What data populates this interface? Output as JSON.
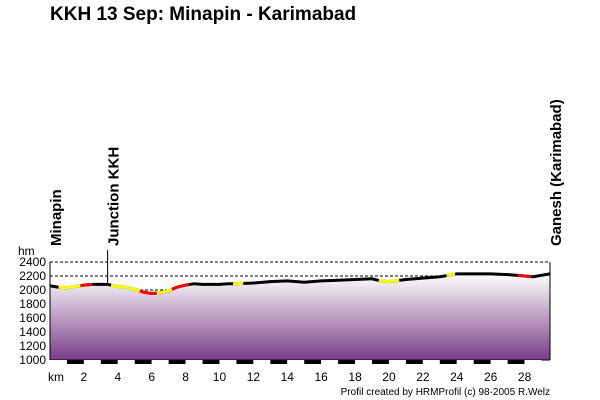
{
  "title": "KKH 13 Sep: Minapin - Karimabad",
  "credit": "Profil created by HRMProfil (c) 98-2005 R.Welz",
  "chart_data": {
    "type": "area",
    "title": "KKH 13 Sep: Minapin - Karimabad",
    "xlabel": "km",
    "ylabel": "hm",
    "xlim": [
      0,
      29.5
    ],
    "ylim": [
      1000,
      2400
    ],
    "x_ticks": [
      "2",
      "4",
      "6",
      "8",
      "10",
      "12",
      "14",
      "16",
      "18",
      "20",
      "22",
      "24",
      "26",
      "28"
    ],
    "y_ticks": [
      "2400",
      "2200",
      "2000",
      "1800",
      "1600",
      "1400",
      "1200",
      "1000"
    ],
    "grid": true,
    "locations": [
      {
        "name": "Minapin",
        "km": 0
      },
      {
        "name": "Junction KKH",
        "km": 3.4
      },
      {
        "name": "Ganesh (Karimabad)",
        "km": 29.5
      }
    ],
    "profile": [
      {
        "km": 0,
        "alt": 2060
      },
      {
        "km": 0.5,
        "alt": 2040
      },
      {
        "km": 1,
        "alt": 2030
      },
      {
        "km": 1.5,
        "alt": 2050
      },
      {
        "km": 2,
        "alt": 2070
      },
      {
        "km": 2.5,
        "alt": 2080
      },
      {
        "km": 3.4,
        "alt": 2080
      },
      {
        "km": 4,
        "alt": 2050
      },
      {
        "km": 4.5,
        "alt": 2040
      },
      {
        "km": 5,
        "alt": 2010
      },
      {
        "km": 5.5,
        "alt": 1970
      },
      {
        "km": 6,
        "alt": 1950
      },
      {
        "km": 6.5,
        "alt": 1960
      },
      {
        "km": 7,
        "alt": 1990
      },
      {
        "km": 7.5,
        "alt": 2040
      },
      {
        "km": 8,
        "alt": 2070
      },
      {
        "km": 8.5,
        "alt": 2090
      },
      {
        "km": 9,
        "alt": 2080
      },
      {
        "km": 10,
        "alt": 2080
      },
      {
        "km": 10.5,
        "alt": 2090
      },
      {
        "km": 11,
        "alt": 2090
      },
      {
        "km": 12,
        "alt": 2100
      },
      {
        "km": 13,
        "alt": 2120
      },
      {
        "km": 14,
        "alt": 2130
      },
      {
        "km": 15,
        "alt": 2110
      },
      {
        "km": 16,
        "alt": 2130
      },
      {
        "km": 17,
        "alt": 2140
      },
      {
        "km": 18,
        "alt": 2150
      },
      {
        "km": 19,
        "alt": 2160
      },
      {
        "km": 19.5,
        "alt": 2130
      },
      {
        "km": 20,
        "alt": 2120
      },
      {
        "km": 21,
        "alt": 2150
      },
      {
        "km": 22,
        "alt": 2170
      },
      {
        "km": 23,
        "alt": 2190
      },
      {
        "km": 23.5,
        "alt": 2210
      },
      {
        "km": 24,
        "alt": 2230
      },
      {
        "km": 25,
        "alt": 2230
      },
      {
        "km": 26,
        "alt": 2230
      },
      {
        "km": 27,
        "alt": 2220
      },
      {
        "km": 28,
        "alt": 2200
      },
      {
        "km": 28.5,
        "alt": 2190
      },
      {
        "km": 29,
        "alt": 2210
      },
      {
        "km": 29.5,
        "alt": 2230
      }
    ],
    "highlight_segments": [
      {
        "from": 0.5,
        "to": 1.8,
        "color": "#ffff00"
      },
      {
        "from": 1.8,
        "to": 2.5,
        "color": "#ff0000"
      },
      {
        "from": 3.6,
        "to": 5.3,
        "color": "#ffff00"
      },
      {
        "from": 5.3,
        "to": 6.3,
        "color": "#ff0000"
      },
      {
        "from": 6.3,
        "to": 7.2,
        "color": "#ffff00"
      },
      {
        "from": 7.2,
        "to": 8.2,
        "color": "#ff0000"
      },
      {
        "from": 10.8,
        "to": 11.4,
        "color": "#ffff00"
      },
      {
        "from": 19.4,
        "to": 20.6,
        "color": "#ffff00"
      },
      {
        "from": 23.4,
        "to": 23.9,
        "color": "#ffff00"
      },
      {
        "from": 27.6,
        "to": 28.4,
        "color": "#ff0000"
      }
    ],
    "colors": {
      "line": "#000000",
      "fill_top": "#ffffff",
      "fill_bottom": "#7a3c8a",
      "grid": "#000000"
    }
  }
}
